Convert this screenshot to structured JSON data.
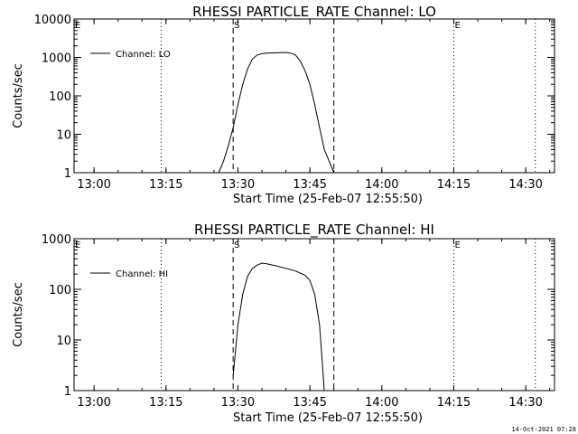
{
  "footer_date": "14-Oct-2021 07:28",
  "chart_data": [
    {
      "type": "line",
      "title": "RHESSI PARTICLE_RATE Channel: LO",
      "xlabel": "Start Time (25-Feb-07 12:55:50)",
      "ylabel": "Counts/sec",
      "yscale": "log",
      "ylim": [
        1,
        10000
      ],
      "xlim": [
        "12:55:50",
        "14:36:00"
      ],
      "x_ticks": [
        "13:00",
        "13:15",
        "13:30",
        "13:45",
        "14:00",
        "14:15",
        "14:30"
      ],
      "y_ticks": [
        "1",
        "10",
        "100",
        "1000",
        "10000"
      ],
      "legend": {
        "label": "Channel: LO",
        "position": "top-left"
      },
      "markers": [
        {
          "label": "E",
          "time": "12:55:50",
          "style": "dotted"
        },
        {
          "label": "",
          "time": "13:14",
          "style": "dotted"
        },
        {
          "label": "S",
          "time": "13:29",
          "style": "dashed"
        },
        {
          "label": "",
          "time": "13:50",
          "style": "dashed"
        },
        {
          "label": "E",
          "time": "14:15",
          "style": "dotted"
        },
        {
          "label": "",
          "time": "14:32",
          "style": "dotted"
        }
      ],
      "series": [
        {
          "x": [
            "13:26",
            "13:27",
            "13:28",
            "13:29",
            "13:30",
            "13:31",
            "13:32",
            "13:33",
            "13:34",
            "13:35",
            "13:36",
            "13:38",
            "13:40",
            "13:41",
            "13:42",
            "13:43",
            "13:44",
            "13:45",
            "13:46",
            "13:47",
            "13:48",
            "13:49",
            "13:50"
          ],
          "y": [
            1,
            2,
            5,
            15,
            60,
            200,
            500,
            900,
            1150,
            1250,
            1300,
            1320,
            1350,
            1300,
            1150,
            800,
            450,
            200,
            60,
            15,
            4,
            2,
            1
          ]
        }
      ]
    },
    {
      "type": "line",
      "title": "RHESSI PARTICLE_RATE Channel: HI",
      "xlabel": "Start Time (25-Feb-07 12:55:50)",
      "ylabel": "Counts/sec",
      "yscale": "log",
      "ylim": [
        1,
        1000
      ],
      "xlim": [
        "12:55:50",
        "14:36:00"
      ],
      "x_ticks": [
        "13:00",
        "13:15",
        "13:30",
        "13:45",
        "14:00",
        "14:15",
        "14:30"
      ],
      "y_ticks": [
        "1",
        "10",
        "100",
        "1000"
      ],
      "legend": {
        "label": "Channel: HI",
        "position": "top-left"
      },
      "markers": [
        {
          "label": "E",
          "time": "12:55:50",
          "style": "dotted"
        },
        {
          "label": "",
          "time": "13:14",
          "style": "dotted"
        },
        {
          "label": "S",
          "time": "13:29",
          "style": "dashed"
        },
        {
          "label": "",
          "time": "13:50",
          "style": "dashed"
        },
        {
          "label": "E",
          "time": "14:15",
          "style": "dotted"
        },
        {
          "label": "",
          "time": "14:32",
          "style": "dotted"
        }
      ],
      "series": [
        {
          "x": [
            "13:29",
            "13:30",
            "13:31",
            "13:32",
            "13:33",
            "13:34",
            "13:35",
            "13:36",
            "13:38",
            "13:40",
            "13:42",
            "13:44",
            "13:45",
            "13:46",
            "13:47",
            "13:48"
          ],
          "y": [
            2,
            20,
            80,
            180,
            260,
            300,
            330,
            320,
            290,
            260,
            230,
            190,
            150,
            80,
            20,
            1
          ]
        }
      ]
    }
  ]
}
